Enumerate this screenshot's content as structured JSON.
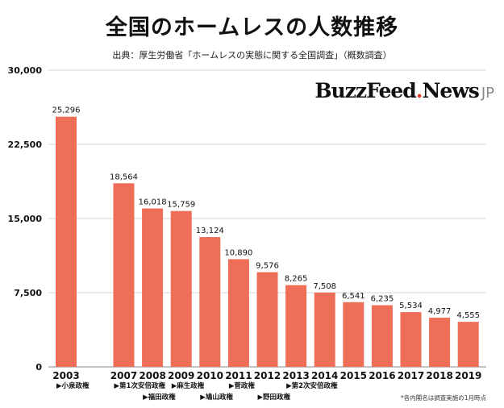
{
  "chart_data": {
    "type": "bar",
    "title": "全国のホームレスの人数推移",
    "subtitle": "出典：厚生労働省「ホームレスの実態に関する全国調査」（概数調査）",
    "categories": [
      "2003",
      "2007",
      "2008",
      "2009",
      "2010",
      "2011",
      "2012",
      "2013",
      "2014",
      "2015",
      "2016",
      "2017",
      "2018",
      "2019"
    ],
    "values": [
      25296,
      18564,
      16018,
      15759,
      13124,
      10890,
      9576,
      8265,
      7508,
      6541,
      6235,
      5534,
      4977,
      4555
    ],
    "value_labels": [
      "25,296",
      "18,564",
      "16,018",
      "15,759",
      "13,124",
      "10,890",
      "9,576",
      "8,265",
      "7,508",
      "6,541",
      "6,235",
      "5,534",
      "4,977",
      "4,555"
    ],
    "ylim": [
      0,
      30000
    ],
    "yticks": [
      0,
      7500,
      15000,
      22500,
      30000
    ],
    "ytick_labels": [
      "0",
      "7,500",
      "15,000",
      "22,500",
      "30,000"
    ],
    "grid": true,
    "bar_color": "#ee6e58",
    "annotations": [
      {
        "category": "2003",
        "row": 0,
        "text": "▶小泉政権"
      },
      {
        "category": "2007",
        "row": 0,
        "text": "▶第1次安倍政権"
      },
      {
        "category": "2008",
        "row": 1,
        "text": "▶福田政権"
      },
      {
        "category": "2009",
        "row": 0,
        "text": "▶麻生政権"
      },
      {
        "category": "2010",
        "row": 1,
        "text": "▶鳩山政権"
      },
      {
        "category": "2011",
        "row": 0,
        "text": "▶菅政権"
      },
      {
        "category": "2012",
        "row": 1,
        "text": "▶野田政権"
      },
      {
        "category": "2013",
        "row": 0,
        "text": "▶第2次安倍政権"
      }
    ]
  },
  "logo": {
    "main": "BuzzFeed",
    "news": "News",
    "suffix": "JP"
  },
  "footnote": "*各内閣名は調査実施の1月時点",
  "colors": {
    "bar": "#ee6e58",
    "grid": "#d6d6d6",
    "accent": "#e4392b"
  }
}
